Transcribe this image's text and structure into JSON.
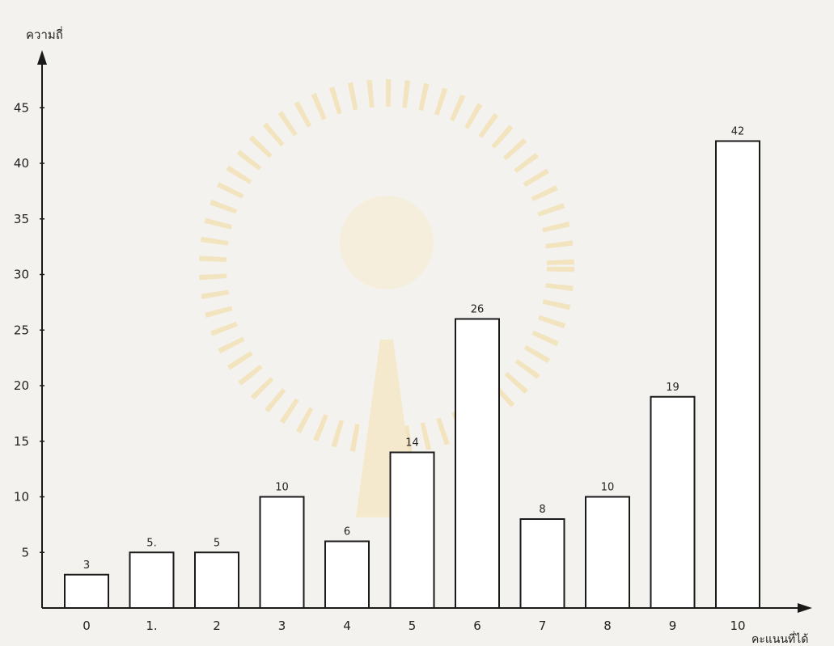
{
  "chart_data": {
    "type": "bar",
    "title": "",
    "xlabel": "คะแนนที่ได้",
    "ylabel": "ความถี่",
    "categories": [
      "0",
      "1.",
      "2",
      "3",
      "4",
      "5",
      "6",
      "7",
      "8",
      "9",
      "10"
    ],
    "values": [
      3,
      5,
      5,
      10,
      6,
      14,
      26,
      8,
      10,
      19,
      42
    ],
    "value_labels": [
      "3",
      "5.",
      "5",
      "10",
      "6",
      "14",
      "26",
      "8",
      "10",
      "19",
      "42"
    ],
    "y_ticks": [
      5,
      10,
      15,
      20,
      25,
      30,
      35,
      40,
      45
    ],
    "ylim": [
      0,
      48
    ],
    "grid": false,
    "legend": "none",
    "colors": {
      "bar_fill": "#ffffff",
      "bar_stroke": "#1a1a1a",
      "axis": "#1a1a1a",
      "paper": "#f4f2ee",
      "watermark": "#f1d28e"
    }
  }
}
